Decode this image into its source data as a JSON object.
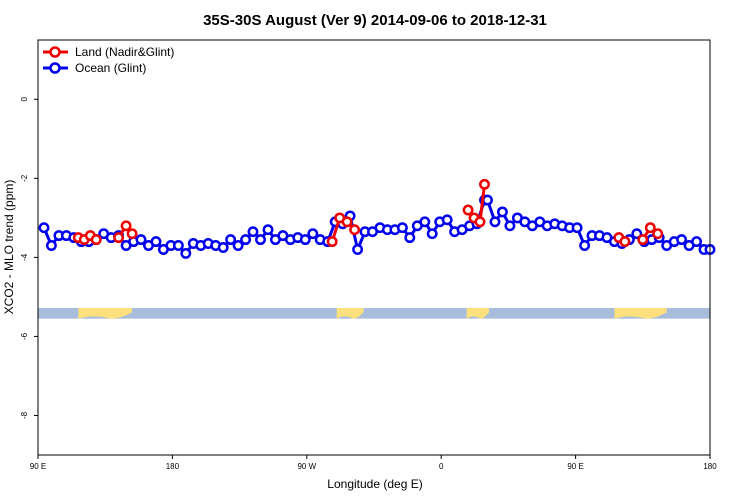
{
  "chart_data": {
    "type": "line",
    "title": "35S-30S August (Ver 9)   2014-09-06 to 2018-12-31",
    "xlabel": "Longitude (deg E)",
    "ylabel": "XCO2 - MLO trend (ppm)",
    "x_axis": "shifted longitude, 90 = 90 E, 180 = 180, 270 = 90 W, 360 = 0, 450 = 90 E, 540 = 180",
    "xlim": [
      90,
      540
    ],
    "ylim": [
      -9,
      1.5
    ],
    "x_ticks": [
      {
        "value": 90,
        "label": "90 E"
      },
      {
        "value": 180,
        "label": "180"
      },
      {
        "value": 270,
        "label": "90 W"
      },
      {
        "value": 360,
        "label": "0"
      },
      {
        "value": 450,
        "label": "90 E"
      },
      {
        "value": 540,
        "label": "180"
      }
    ],
    "y_ticks": [
      {
        "value": 0,
        "label": "0"
      },
      {
        "value": -2,
        "label": "-2"
      },
      {
        "value": -4,
        "label": "-4"
      },
      {
        "value": -6,
        "label": "-6"
      },
      {
        "value": -8,
        "label": "-8"
      }
    ],
    "legend": {
      "position": "top-left"
    },
    "land_mask": {
      "y_range": [
        -5.55,
        -5.28
      ],
      "ocean_color": "#a7bddb",
      "land_color": "#fde07e",
      "land_ranges": [
        [
          117,
          153
        ],
        [
          290,
          308
        ],
        [
          377,
          392
        ],
        [
          476,
          511
        ]
      ]
    },
    "series": [
      {
        "name": "Land (Nadir&Glint)",
        "color": "#ee0000",
        "segments": [
          {
            "x": [
              117,
              121,
              125,
              129
            ],
            "y": [
              -3.5,
              -3.55,
              -3.45,
              -3.55
            ]
          },
          {
            "x": [
              144,
              149,
              153
            ],
            "y": [
              -3.5,
              -3.2,
              -3.4
            ]
          },
          {
            "x": [
              287,
              292,
              297,
              302
            ],
            "y": [
              -3.6,
              -3.0,
              -3.1,
              -3.3
            ]
          },
          {
            "x": [
              378,
              382,
              386,
              389
            ],
            "y": [
              -2.8,
              -3.0,
              -3.1,
              -2.15
            ]
          },
          {
            "x": [
              479,
              483
            ],
            "y": [
              -3.5,
              -3.6
            ]
          },
          {
            "x": [
              495,
              500,
              505
            ],
            "y": [
              -3.55,
              -3.25,
              -3.4
            ]
          }
        ]
      },
      {
        "name": "Ocean (Glint)",
        "color": "#0000ee",
        "x": [
          94,
          99,
          104,
          109,
          114,
          119,
          124,
          129,
          134,
          139,
          144,
          149,
          154,
          159,
          164,
          169,
          174,
          179,
          184,
          189,
          194,
          199,
          204,
          209,
          214,
          219,
          224,
          229,
          234,
          239,
          244,
          249,
          254,
          259,
          264,
          269,
          274,
          279,
          284,
          289,
          294,
          299,
          304,
          309,
          314,
          319,
          324,
          329,
          334,
          339,
          344,
          349,
          354,
          359,
          364,
          369,
          374,
          379,
          384,
          389,
          391,
          396,
          401,
          406,
          411,
          416,
          421,
          426,
          431,
          436,
          441,
          446,
          451,
          456,
          461,
          466,
          471,
          476,
          481,
          486,
          491,
          496,
          501,
          506,
          511,
          516,
          521,
          526,
          531,
          536,
          540
        ],
        "y": [
          -3.25,
          -3.7,
          -3.45,
          -3.45,
          -3.5,
          -3.6,
          -3.6,
          -3.55,
          -3.4,
          -3.5,
          -3.45,
          -3.7,
          -3.6,
          -3.55,
          -3.7,
          -3.6,
          -3.8,
          -3.7,
          -3.7,
          -3.9,
          -3.65,
          -3.7,
          -3.65,
          -3.7,
          -3.75,
          -3.55,
          -3.7,
          -3.55,
          -3.35,
          -3.55,
          -3.3,
          -3.55,
          -3.45,
          -3.55,
          -3.5,
          -3.55,
          -3.4,
          -3.55,
          -3.6,
          -3.1,
          -3.15,
          -2.95,
          -3.8,
          -3.35,
          -3.35,
          -3.25,
          -3.3,
          -3.3,
          -3.25,
          -3.5,
          -3.2,
          -3.1,
          -3.4,
          -3.1,
          -3.05,
          -3.35,
          -3.3,
          -3.2,
          -3.15,
          -2.55,
          -2.55,
          -3.1,
          -2.85,
          -3.2,
          -3.0,
          -3.1,
          -3.2,
          -3.1,
          -3.2,
          -3.15,
          -3.2,
          -3.25,
          -3.25,
          -3.7,
          -3.45,
          -3.45,
          -3.5,
          -3.6,
          -3.65,
          -3.55,
          -3.4,
          -3.6,
          -3.55,
          -3.5,
          -3.7,
          -3.6,
          -3.55,
          -3.7,
          -3.6,
          -3.8,
          -3.8
        ]
      }
    ]
  }
}
